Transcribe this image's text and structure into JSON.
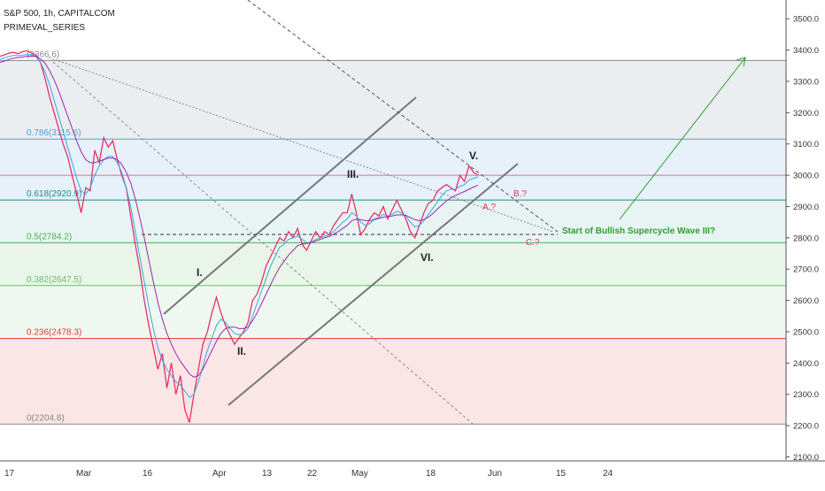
{
  "header": {
    "title": "S&P 500, 1h, CAPITALCOM",
    "indicator": "PRIMEVAL_SERIES"
  },
  "colors": {
    "price": "#e8306a",
    "ma_fast": "#3aa6e0",
    "ma_slow": "#9c27b0",
    "channel": "#777777",
    "annotation_green": "#2e9e2e",
    "annotation_red": "#e8306a"
  },
  "chart_data": {
    "type": "line",
    "title": "S&P 500, 1h, CAPITALCOM",
    "xlabel": "",
    "ylabel": "",
    "ylim": [
      2090,
      3560
    ],
    "y_ticks": [
      3500,
      3400,
      3300,
      3200,
      3100,
      3000,
      2900,
      2800,
      2700,
      2600,
      2500,
      2400,
      2300,
      2200,
      2100
    ],
    "y_tick_labels": [
      "3500.0",
      "3400.0",
      "3300.0",
      "3200.0",
      "3100.0",
      "3000.0",
      "2900.0",
      "2800.0",
      "2700.0",
      "2600.0",
      "2500.0",
      "2400.0",
      "2300.0",
      "2200.0",
      "2100.0"
    ],
    "x_ticks": [
      "17",
      "Mar",
      "16",
      "Apr",
      "13",
      "22",
      "May",
      "18",
      "Jun",
      "15",
      "24"
    ],
    "grid": true,
    "fib_levels": [
      {
        "label": "0.786(3115.6)",
        "value": 3115.6,
        "color": "#4aa3df"
      },
      {
        "label": "0.618(2920.9)",
        "value": 2920.9,
        "color": "#1e8c8c"
      },
      {
        "label": "0.5(2784.2)",
        "value": 2784.2,
        "color": "#4caf50"
      },
      {
        "label": "0.382(2647.5)",
        "value": 2647.5,
        "color": "#6abf69"
      },
      {
        "label": "0.236(2478.3)",
        "value": 2478.3,
        "color": "#e53935"
      },
      {
        "label": "0(2204.8)",
        "value": 2204.8,
        "color": "#888888"
      },
      {
        "label": "(3366.6)",
        "value": 3366.6,
        "color": "#888888"
      }
    ],
    "series": [
      {
        "name": "",
        "values": [
          3380,
          3385,
          3390,
          3393,
          3388,
          3395,
          3398,
          3390,
          3384,
          3360,
          3310,
          3250,
          3200,
          3150,
          3100,
          3060,
          3000,
          2940,
          2880,
          2960,
          2950,
          3080,
          3040,
          3120,
          3090,
          3110,
          3050,
          3000,
          2960,
          2870,
          2780,
          2700,
          2600,
          2520,
          2450,
          2380,
          2430,
          2320,
          2400,
          2300,
          2360,
          2250,
          2210,
          2300,
          2380,
          2460,
          2500,
          2560,
          2610,
          2560,
          2520,
          2490,
          2460,
          2480,
          2500,
          2530,
          2600,
          2620,
          2660,
          2710,
          2740,
          2770,
          2800,
          2790,
          2820,
          2800,
          2830,
          2780,
          2760,
          2790,
          2820,
          2800,
          2820,
          2810,
          2840,
          2860,
          2880,
          2880,
          2940,
          2880,
          2810,
          2830,
          2860,
          2880,
          2870,
          2900,
          2860,
          2890,
          2920,
          2890,
          2860,
          2820,
          2800,
          2840,
          2880,
          2910,
          2920,
          2950,
          2960,
          2970,
          2960,
          2950,
          3000,
          2980,
          3030,
          3010,
          3000
        ]
      },
      {
        "name": "",
        "values": [
          3370,
          3375,
          3380,
          3383,
          3382,
          3384,
          3386,
          3385,
          3378,
          3360,
          3330,
          3290,
          3240,
          3190,
          3140,
          3090,
          3040,
          2990,
          2950,
          2940,
          2960,
          3000,
          3030,
          3050,
          3060,
          3060,
          3040,
          3010,
          2960,
          2900,
          2820,
          2740,
          2660,
          2580,
          2510,
          2450,
          2410,
          2380,
          2360,
          2340,
          2330,
          2310,
          2290,
          2300,
          2340,
          2390,
          2440,
          2480,
          2520,
          2540,
          2530,
          2510,
          2495,
          2490,
          2495,
          2510,
          2550,
          2590,
          2630,
          2670,
          2710,
          2740,
          2770,
          2780,
          2795,
          2800,
          2805,
          2795,
          2785,
          2785,
          2795,
          2800,
          2805,
          2810,
          2820,
          2835,
          2850,
          2860,
          2880,
          2870,
          2850,
          2840,
          2845,
          2860,
          2865,
          2875,
          2870,
          2875,
          2885,
          2880,
          2870,
          2850,
          2835,
          2840,
          2855,
          2875,
          2895,
          2915,
          2935,
          2950,
          2955,
          2955,
          2965,
          2970,
          2985,
          2990,
          2995
        ]
      },
      {
        "name": "",
        "values": [
          3360,
          3365,
          3370,
          3374,
          3376,
          3378,
          3380,
          3381,
          3380,
          3372,
          3358,
          3335,
          3305,
          3270,
          3230,
          3190,
          3150,
          3110,
          3075,
          3050,
          3040,
          3040,
          3045,
          3050,
          3055,
          3055,
          3050,
          3035,
          3010,
          2975,
          2925,
          2865,
          2800,
          2730,
          2660,
          2595,
          2540,
          2495,
          2460,
          2430,
          2405,
          2385,
          2365,
          2355,
          2360,
          2380,
          2410,
          2440,
          2470,
          2495,
          2510,
          2515,
          2515,
          2510,
          2510,
          2515,
          2535,
          2560,
          2590,
          2620,
          2650,
          2680,
          2705,
          2725,
          2745,
          2760,
          2775,
          2780,
          2782,
          2785,
          2790,
          2795,
          2800,
          2805,
          2812,
          2820,
          2830,
          2840,
          2855,
          2860,
          2858,
          2855,
          2855,
          2858,
          2862,
          2866,
          2868,
          2870,
          2873,
          2874,
          2872,
          2865,
          2858,
          2855,
          2858,
          2866,
          2878,
          2892,
          2905,
          2918,
          2928,
          2935,
          2942,
          2948,
          2955,
          2962,
          2968
        ]
      }
    ],
    "annotations": [
      {
        "text": "I.",
        "color": "#222222"
      },
      {
        "text": "II.",
        "color": "#222222"
      },
      {
        "text": "III.",
        "color": "#222222"
      },
      {
        "text": "V.",
        "color": "#222222"
      },
      {
        "text": "VI.",
        "color": "#222222"
      },
      {
        "text": "A.?",
        "color": "#e8306a"
      },
      {
        "text": "B.?",
        "color": "#e8306a"
      },
      {
        "text": "C.?",
        "color": "#e8306a"
      },
      {
        "text": "Start of Bullish Supercycle Wave III?",
        "color": "#2e9e2e"
      }
    ]
  }
}
